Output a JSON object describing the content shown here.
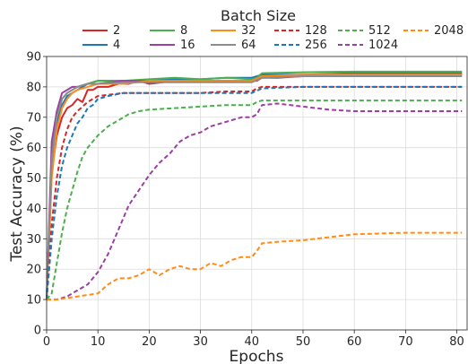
{
  "chart_data": {
    "type": "line",
    "title": "",
    "xlabel": "Epochs",
    "ylabel": "Test Accuracy (%)",
    "xlim": [
      0,
      82
    ],
    "ylim": [
      0,
      90
    ],
    "xticks": [
      0,
      10,
      20,
      30,
      40,
      50,
      60,
      70,
      80
    ],
    "yticks": [
      0,
      10,
      20,
      30,
      40,
      50,
      60,
      70,
      80,
      90
    ],
    "grid": true,
    "legend": {
      "title": "Batch Size",
      "placement": "top-center",
      "columns": 6
    },
    "series": [
      {
        "name": "2",
        "color": "#d62728",
        "dash": "solid",
        "x": [
          0,
          1,
          2,
          3,
          4,
          5,
          6,
          7,
          8,
          9,
          10,
          12,
          14,
          16,
          18,
          20,
          25,
          30,
          35,
          40,
          41,
          42,
          45,
          50,
          60,
          70,
          81
        ],
        "y": [
          10,
          52,
          64,
          70,
          73,
          74,
          76,
          75,
          79,
          79,
          80,
          80,
          81,
          81,
          82,
          81,
          82,
          82,
          82,
          82,
          82,
          83,
          83,
          83.5,
          84,
          84,
          84
        ]
      },
      {
        "name": "4",
        "color": "#1f77b4",
        "dash": "solid",
        "x": [
          0,
          1,
          2,
          3,
          4,
          5,
          6,
          8,
          10,
          15,
          20,
          25,
          30,
          35,
          40,
          42,
          50,
          60,
          70,
          81
        ],
        "y": [
          10,
          55,
          68,
          74,
          77,
          78,
          79,
          81,
          82,
          82,
          82,
          82.5,
          82.5,
          83,
          83,
          84,
          84,
          84.5,
          84.5,
          84.5
        ]
      },
      {
        "name": "8",
        "color": "#4cae4c",
        "dash": "solid",
        "x": [
          0,
          1,
          2,
          3,
          4,
          5,
          6,
          8,
          10,
          15,
          20,
          25,
          30,
          35,
          40,
          41,
          42,
          50,
          60,
          70,
          81
        ],
        "y": [
          10,
          58,
          70,
          76,
          78,
          79,
          80,
          81,
          82,
          82,
          82.5,
          83,
          82.5,
          83,
          82.5,
          83,
          84.5,
          84.8,
          85,
          85,
          85
        ]
      },
      {
        "name": "16",
        "color": "#9b3fa2",
        "dash": "solid",
        "x": [
          0,
          1,
          2,
          3,
          4,
          5,
          6,
          8,
          10,
          15,
          20,
          25,
          30,
          35,
          40,
          42,
          50,
          60,
          70,
          81
        ],
        "y": [
          10,
          62,
          72,
          78,
          79,
          80,
          80,
          81,
          81,
          82,
          82,
          82,
          82,
          82,
          82,
          83.5,
          84,
          84,
          84,
          84
        ]
      },
      {
        "name": "32",
        "color": "#ff8c1a",
        "dash": "solid",
        "x": [
          0,
          1,
          2,
          3,
          4,
          5,
          6,
          8,
          10,
          15,
          20,
          25,
          30,
          35,
          40,
          42,
          50,
          60,
          70,
          81
        ],
        "y": [
          10,
          50,
          66,
          73,
          76,
          78,
          79,
          80,
          81,
          81,
          82,
          82,
          82,
          82,
          82,
          83.5,
          84,
          84,
          84,
          84
        ]
      },
      {
        "name": "64",
        "color": "#8c8c8c",
        "dash": "solid",
        "x": [
          0,
          1,
          2,
          3,
          4,
          5,
          6,
          8,
          10,
          15,
          20,
          25,
          30,
          35,
          40,
          42,
          50,
          60,
          70,
          81
        ],
        "y": [
          10,
          56,
          70,
          76,
          78,
          79,
          80,
          81,
          81,
          81.5,
          81.5,
          81.5,
          81.5,
          81.5,
          81.5,
          83,
          83.5,
          83.5,
          83.5,
          83.5
        ]
      },
      {
        "name": "128",
        "color": "#d62728",
        "dash": "dashed",
        "x": [
          0,
          1,
          2,
          3,
          4,
          5,
          6,
          8,
          10,
          15,
          20,
          25,
          30,
          35,
          40,
          41,
          42,
          50,
          60,
          70,
          81
        ],
        "y": [
          10,
          35,
          50,
          60,
          66,
          70,
          72,
          75,
          77,
          78,
          78,
          78,
          78,
          78.5,
          78.5,
          79.5,
          80,
          80,
          80,
          80,
          80
        ]
      },
      {
        "name": "256",
        "color": "#1f77b4",
        "dash": "dashed",
        "x": [
          0,
          1,
          2,
          3,
          4,
          5,
          6,
          7,
          8,
          9,
          10,
          12,
          15,
          20,
          25,
          30,
          35,
          40,
          42,
          50,
          60,
          70,
          81
        ],
        "y": [
          10,
          30,
          44,
          54,
          60,
          64,
          68,
          70,
          73,
          74,
          76,
          77,
          78,
          78,
          78,
          78,
          78,
          78,
          79.5,
          80,
          80,
          80,
          80
        ]
      },
      {
        "name": "512",
        "color": "#4cae4c",
        "dash": "dashed",
        "x": [
          0,
          1,
          2,
          3,
          4,
          5,
          6,
          7,
          8,
          9,
          10,
          12,
          14,
          16,
          18,
          20,
          25,
          30,
          35,
          40,
          41,
          42,
          45,
          50,
          60,
          70,
          81
        ],
        "y": [
          10,
          12,
          22,
          32,
          40,
          46,
          52,
          57,
          60,
          62,
          64,
          67,
          69,
          71,
          72,
          72.5,
          73,
          73.5,
          74,
          74,
          75,
          75.5,
          75.5,
          75.5,
          75.5,
          75.5,
          75.5
        ]
      },
      {
        "name": "1024",
        "color": "#9b3fa2",
        "dash": "dashed",
        "x": [
          0,
          2,
          4,
          6,
          8,
          10,
          12,
          14,
          16,
          18,
          20,
          22,
          24,
          26,
          28,
          30,
          32,
          34,
          36,
          38,
          40,
          41,
          42,
          45,
          50,
          55,
          60,
          70,
          81
        ],
        "y": [
          10,
          10,
          11,
          13,
          15,
          19,
          25,
          33,
          41,
          46,
          51,
          55,
          58,
          62,
          64,
          65,
          67,
          68,
          69,
          70,
          70,
          71,
          74,
          74.5,
          73.5,
          72.5,
          72,
          72,
          72
        ]
      },
      {
        "name": "2048",
        "color": "#ff8c1a",
        "dash": "dashed",
        "x": [
          0,
          2,
          4,
          6,
          8,
          10,
          12,
          14,
          16,
          18,
          20,
          22,
          24,
          26,
          28,
          30,
          32,
          34,
          36,
          38,
          40,
          41,
          42,
          45,
          50,
          55,
          60,
          70,
          81
        ],
        "y": [
          10,
          10,
          10.5,
          11,
          11.5,
          12,
          15,
          17,
          17,
          18,
          20,
          18,
          20,
          21,
          20,
          20,
          22,
          21,
          23,
          24,
          24,
          26,
          28.5,
          29,
          29.5,
          30.5,
          31.5,
          32,
          32
        ]
      }
    ]
  }
}
